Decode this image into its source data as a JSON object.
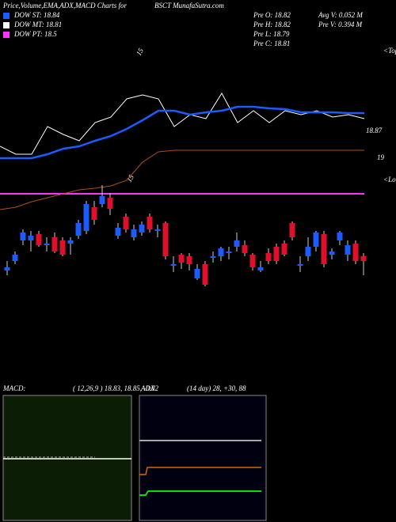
{
  "header": {
    "title": "Price,Volume,EMA,ADX,MACD Charts for",
    "site": "BSCT MunafaSutra.com",
    "stats": [
      "Pre  O: 18.82",
      "Pre  H: 18.82",
      "Pre  L: 18.79",
      "Pre  C: 18.81"
    ],
    "volume": [
      "Avg V: 0.052  M",
      "Pre  V: 0.394  M"
    ]
  },
  "legend": [
    {
      "label": "DOW ST: 18.84",
      "color": "#1a5cff"
    },
    {
      "label": "DOW MT: 18.81",
      "color": "#ffffff"
    },
    {
      "label": "DOW PT: 18.5",
      "color": "#ff33ff"
    }
  ],
  "annotations": {
    "tops": "<Tops",
    "lows": "<Lows",
    "mark_top": "15",
    "mark_low": "15",
    "label_price": "18.87",
    "label_line": "19"
  },
  "chart_data": {
    "type": "candlestick",
    "ylim": [
      18.2,
      19.8
    ],
    "up_color": "#1a5cff",
    "down_color": "#e0102a",
    "open": [
      18.39,
      18.45,
      18.58,
      18.58,
      18.62,
      18.55,
      18.6,
      18.58,
      18.56,
      18.61,
      18.64,
      18.79,
      18.81,
      18.85,
      18.61,
      18.73,
      18.6,
      18.63,
      18.73,
      18.64,
      18.69,
      18.42,
      18.49,
      18.48,
      18.34,
      18.43,
      18.47,
      18.48,
      18.5,
      18.54,
      18.55,
      18.49,
      18.39,
      18.5,
      18.54,
      18.56,
      18.69,
      18.42,
      18.48,
      18.54,
      18.62,
      18.49,
      18.58,
      18.49,
      18.56,
      18.48
    ],
    "high": [
      18.45,
      18.51,
      18.65,
      18.64,
      18.64,
      18.6,
      18.63,
      18.6,
      18.6,
      18.71,
      18.83,
      18.83,
      18.93,
      18.88,
      18.69,
      18.75,
      18.68,
      18.7,
      18.75,
      18.68,
      18.7,
      18.48,
      18.5,
      18.5,
      18.43,
      18.45,
      18.51,
      18.54,
      18.54,
      18.63,
      18.58,
      18.5,
      18.45,
      18.53,
      18.56,
      18.58,
      18.7,
      18.48,
      18.6,
      18.64,
      18.64,
      18.53,
      18.64,
      18.58,
      18.58,
      18.5
    ],
    "low": [
      18.36,
      18.43,
      18.55,
      18.51,
      18.54,
      18.51,
      18.5,
      18.48,
      18.49,
      18.59,
      18.62,
      18.68,
      18.79,
      18.74,
      18.59,
      18.63,
      18.58,
      18.61,
      18.63,
      18.6,
      18.46,
      18.38,
      18.4,
      18.39,
      18.33,
      18.29,
      18.44,
      18.45,
      18.46,
      18.51,
      18.48,
      18.39,
      18.38,
      18.43,
      18.43,
      18.48,
      18.58,
      18.38,
      18.45,
      18.51,
      18.41,
      18.46,
      18.55,
      18.45,
      18.43,
      18.36
    ],
    "close": [
      18.41,
      18.49,
      18.63,
      18.61,
      18.55,
      18.56,
      18.51,
      18.49,
      18.58,
      18.69,
      18.81,
      18.71,
      18.86,
      18.78,
      18.66,
      18.65,
      18.65,
      18.68,
      18.65,
      18.65,
      18.48,
      18.43,
      18.44,
      18.43,
      18.4,
      18.3,
      18.48,
      18.53,
      18.51,
      18.58,
      18.5,
      18.41,
      18.41,
      18.45,
      18.45,
      18.49,
      18.6,
      18.43,
      18.54,
      18.63,
      18.43,
      18.51,
      18.63,
      18.55,
      18.45,
      18.45
    ],
    "overlay": {
      "ylim": [
        18.2,
        19.1
      ],
      "series": [
        {
          "color": "#ff33ff",
          "width": 2,
          "values": [
            18.375,
            18.375,
            18.375,
            18.375,
            18.375,
            18.375,
            18.375,
            18.375,
            18.375,
            18.375,
            18.375,
            18.375,
            18.375,
            18.375,
            18.375,
            18.375,
            18.375,
            18.375,
            18.375,
            18.375,
            18.375,
            18.375,
            18.375,
            18.375
          ]
        },
        {
          "color": "#b0501a",
          "width": 1,
          "values": [
            18.275,
            18.29,
            18.325,
            18.35,
            18.375,
            18.4,
            18.41,
            18.425,
            18.46,
            18.575,
            18.64,
            18.65,
            18.65,
            18.65,
            18.65,
            18.65,
            18.65,
            18.65,
            18.65,
            18.65,
            18.65,
            18.65,
            18.65,
            18.65
          ]
        },
        {
          "color": "#ffffff",
          "width": 1,
          "values": [
            18.675,
            18.625,
            18.625,
            18.8,
            18.75,
            18.71,
            18.825,
            18.86,
            18.975,
            19.0,
            18.975,
            18.8,
            18.875,
            18.85,
            19.01,
            18.825,
            18.9,
            18.825,
            18.9,
            18.875,
            18.9,
            18.86,
            18.875,
            18.85
          ]
        },
        {
          "color": "#1a5cff",
          "width": 2.5,
          "values": [
            18.6,
            18.6,
            18.6,
            18.625,
            18.66,
            18.675,
            18.71,
            18.74,
            18.785,
            18.84,
            18.9,
            18.9,
            18.875,
            18.89,
            18.9,
            18.925,
            18.925,
            18.915,
            18.91,
            18.89,
            18.89,
            18.89,
            18.885,
            18.885
          ]
        }
      ]
    }
  },
  "macd": {
    "label": "MACD:",
    "values": "( 12,26,9 ) 18.83, 18.85, -0.02"
  },
  "adx": {
    "label": "ADX",
    "values": "(14  day) 28, +30, 88"
  }
}
